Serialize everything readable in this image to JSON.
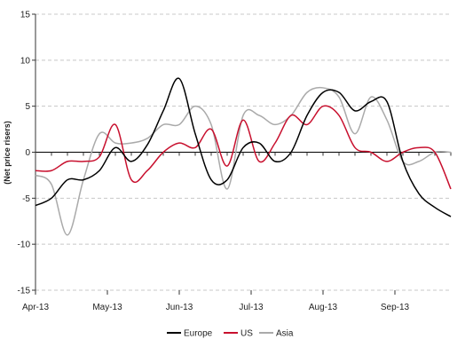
{
  "chart_data": {
    "type": "line",
    "title": "",
    "ylabel": "(Net price risers)",
    "xlabel": "",
    "ylim": [
      -15,
      15
    ],
    "yticks": [
      15,
      10,
      5,
      0,
      -5,
      -10,
      -15
    ],
    "y_tick_labels": [
      "15",
      "10",
      "5",
      "0",
      "-5",
      "-10",
      "-15"
    ],
    "xlim": [
      0,
      26
    ],
    "x_tick_positions": [
      0,
      4.5,
      9,
      13.5,
      18,
      22.5
    ],
    "x_tick_labels": [
      "Apr-13",
      "May-13",
      "Jun-13",
      "Jul-13",
      "Aug-13",
      "Sep-13"
    ],
    "grid": "horizontal dashed",
    "legend": "bottom-center",
    "colors": {
      "Europe": "#000000",
      "US": "#c8102e",
      "Asia": "#aaaaaa",
      "grid": "#c8c8c8",
      "axis": "#333333"
    },
    "x": [
      0,
      1,
      2,
      3,
      4,
      5,
      6,
      7,
      8,
      9,
      10,
      11,
      12,
      13,
      14,
      15,
      16,
      17,
      18,
      19,
      20,
      21,
      22,
      23,
      24,
      25,
      26
    ],
    "series": [
      {
        "name": "Europe",
        "values": [
          -5.8,
          -5,
          -3,
          -3,
          -2,
          0.5,
          -1,
          0.8,
          4.5,
          8,
          2,
          -3,
          -3,
          0.5,
          1,
          -1,
          0,
          4,
          6.5,
          6.5,
          4.5,
          5.5,
          5.5,
          -1,
          -4.5,
          -6,
          -7
        ]
      },
      {
        "name": "US",
        "values": [
          -2,
          -2,
          -1,
          -1,
          -0.5,
          3,
          -3,
          -2,
          0,
          1,
          0.5,
          2.5,
          -1.5,
          3.5,
          -1,
          1,
          4,
          3,
          5,
          4,
          0.5,
          0,
          -1,
          0,
          0.5,
          0,
          -4
        ]
      },
      {
        "name": "Asia",
        "values": [
          -2.5,
          -3.5,
          -9,
          -3,
          2,
          1,
          1,
          1.5,
          3,
          3,
          5,
          3,
          -4,
          4,
          4,
          3,
          4,
          6.5,
          7,
          6,
          2,
          6,
          3.5,
          -1,
          -1,
          0,
          0
        ]
      }
    ]
  }
}
